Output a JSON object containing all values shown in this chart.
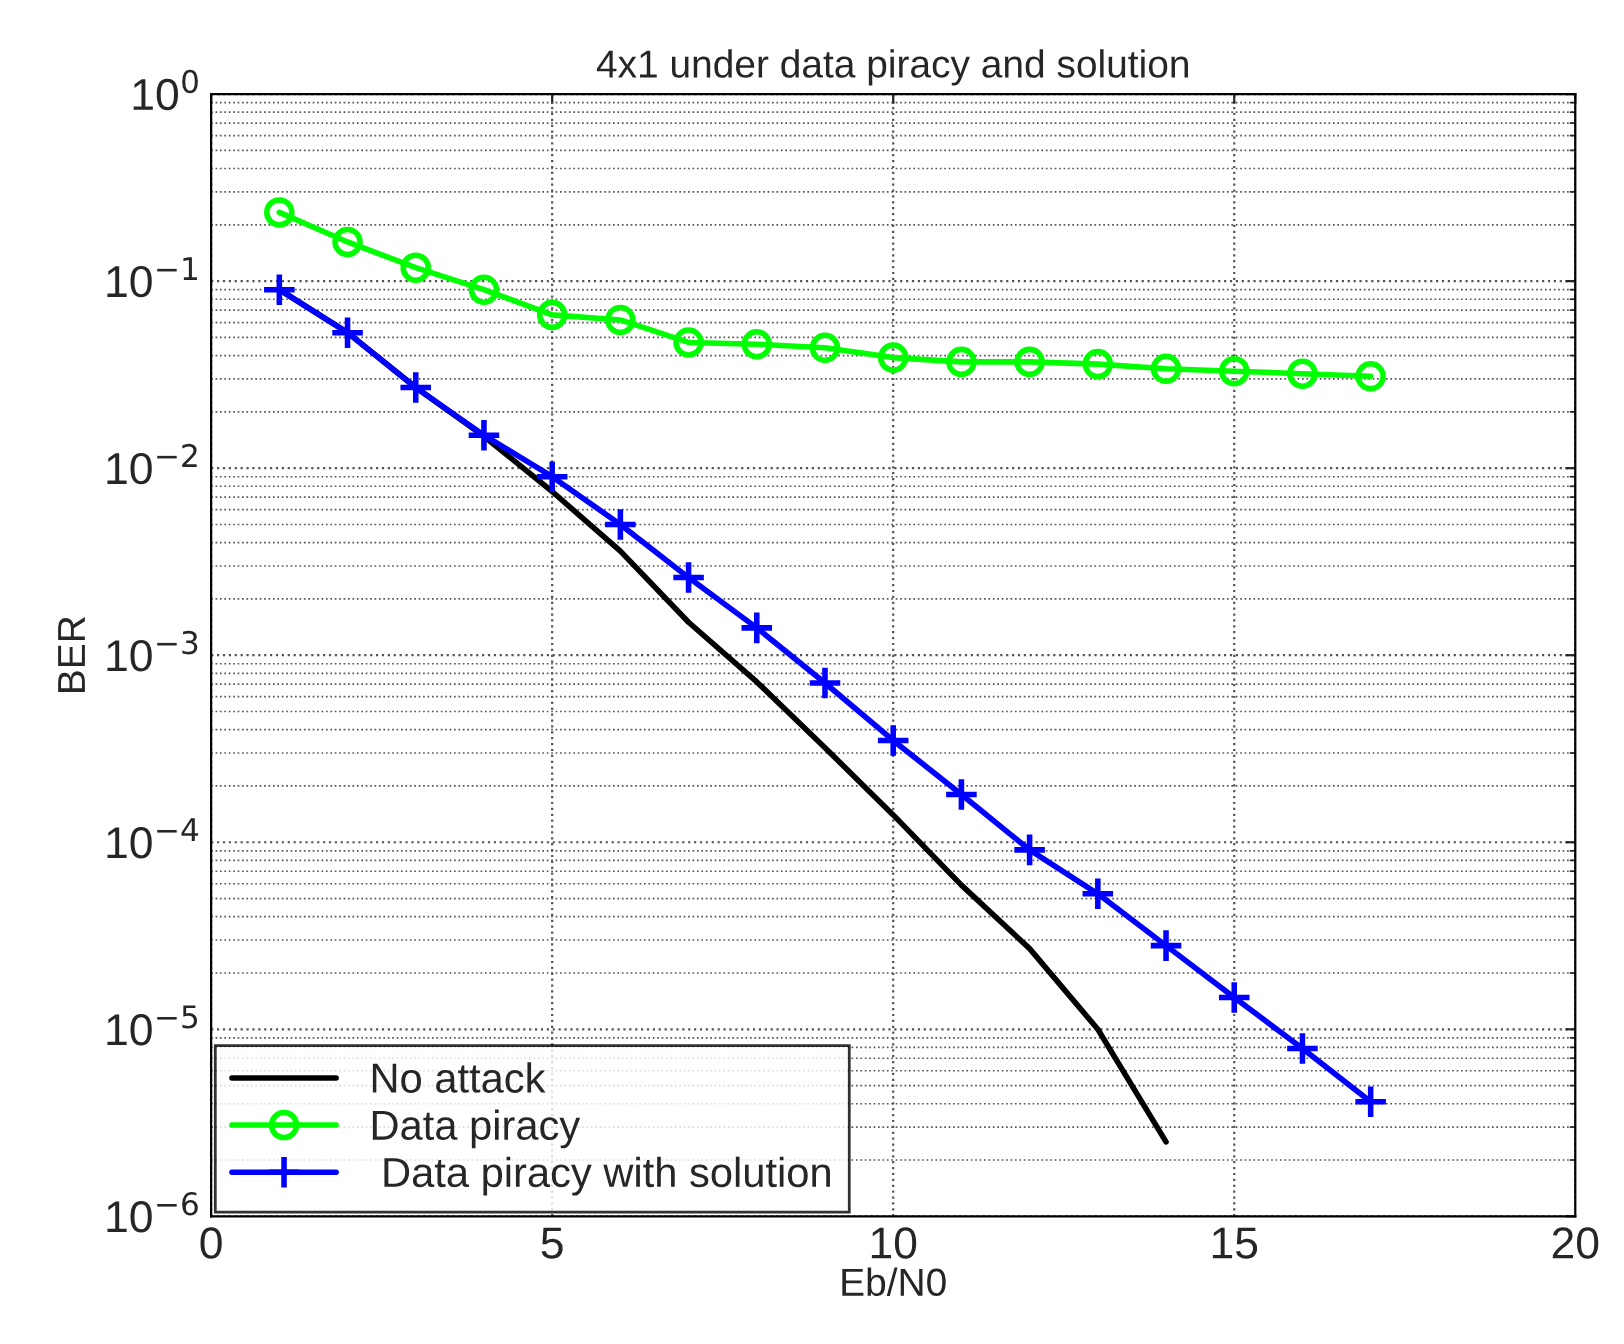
{
  "chart_data": {
    "type": "line",
    "title": "4x1 under data piracy and solution",
    "xlabel": "Eb/N0",
    "ylabel": "BER",
    "log": "y",
    "grid": true,
    "legend": "bottom left",
    "xlim": [
      0,
      20
    ],
    "xticks": [
      0,
      5,
      10,
      15,
      20
    ],
    "ylim": [
      1e-06,
      1
    ],
    "yticks": [
      {
        "value": 1e-06,
        "label": "10$^{−6}$"
      },
      {
        "value": 1e-05,
        "label": "10$^{−5}$"
      },
      {
        "value": 0.0001,
        "label": "10$^{−4}$"
      },
      {
        "value": 0.001,
        "label": "10$^{−3}$"
      },
      {
        "value": 0.01,
        "label": "10$^{−2}$"
      },
      {
        "value": 0.1,
        "label": "10$^{−1}$"
      },
      {
        "value": 1,
        "label": "10$^{0}$"
      }
    ],
    "series": [
      {
        "name": "No attack",
        "color": "#000000",
        "marker": "none",
        "x": [
          1,
          2,
          3,
          4,
          5,
          6,
          7,
          8,
          9,
          10,
          11,
          12,
          13,
          14
        ],
        "values": [
          0.09,
          0.053,
          0.027,
          0.0148,
          0.0075,
          0.0036,
          0.0015,
          0.00072,
          0.00032,
          0.00014,
          5.9e-05,
          2.7e-05,
          1e-05,
          2.5e-06
        ]
      },
      {
        "name": "Data piracy",
        "color": "#00ff00",
        "marker": "circle",
        "x": [
          1,
          2,
          3,
          4,
          5,
          6,
          7,
          8,
          9,
          10,
          11,
          12,
          13,
          14,
          15,
          16,
          17
        ],
        "values": [
          0.233,
          0.162,
          0.118,
          0.09,
          0.066,
          0.062,
          0.047,
          0.046,
          0.044,
          0.039,
          0.037,
          0.037,
          0.036,
          0.034,
          0.033,
          0.032,
          0.031
        ]
      },
      {
        "name": " Data piracy with solution",
        "color": "#0000ff",
        "marker": "cross",
        "x": [
          1,
          2,
          3,
          4,
          5,
          6,
          7,
          8,
          9,
          10,
          11,
          12,
          13,
          14,
          15,
          16,
          17
        ],
        "values": [
          0.09,
          0.053,
          0.027,
          0.015,
          0.009,
          0.005,
          0.0026,
          0.0014,
          0.00071,
          0.00035,
          0.00018,
          9.1e-05,
          5.3e-05,
          2.8e-05,
          1.48e-05,
          7.9e-06,
          4.1e-06
        ]
      }
    ]
  }
}
